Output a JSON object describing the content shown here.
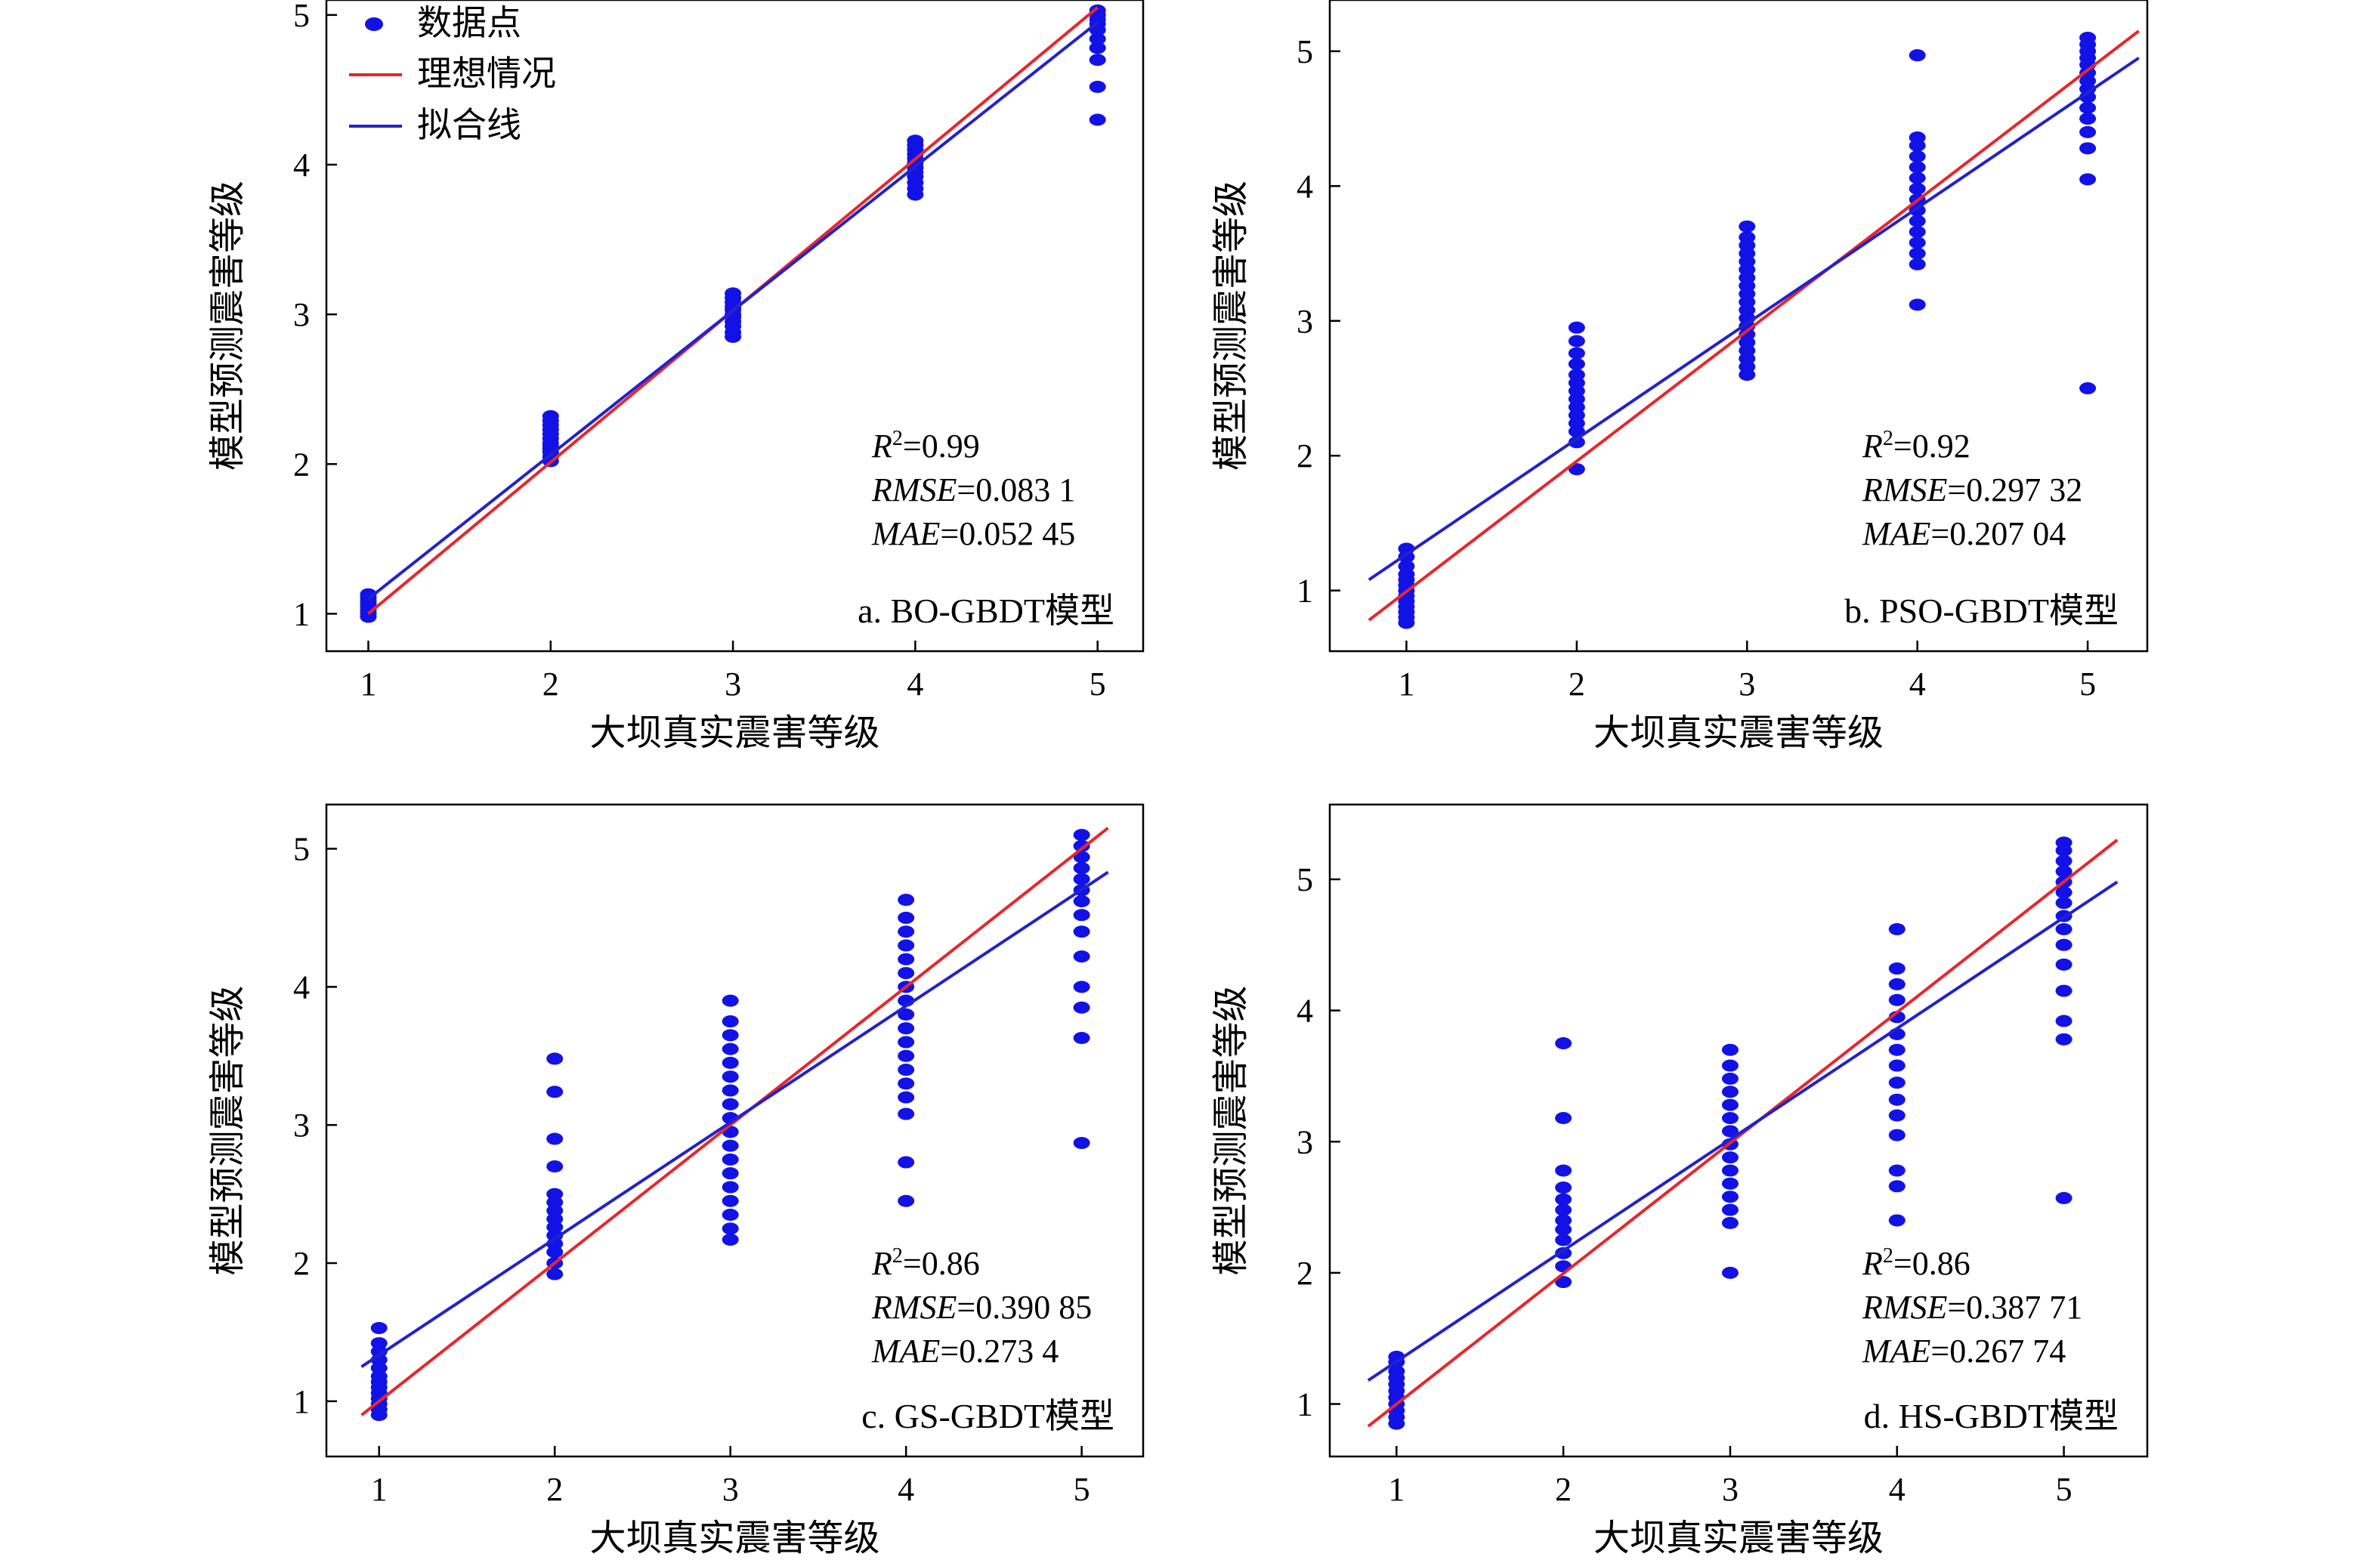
{
  "colors": {
    "points": "#1212e6",
    "ideal": "#e8262c",
    "fit": "#2222cc"
  },
  "legend": {
    "points_label": "数据点",
    "ideal_label": "理想情况",
    "fit_label": "拟合线"
  },
  "chart_data": [
    {
      "type": "scatter",
      "panel_label": "a. BO-GBDT模型",
      "xlabel": "大坝真实震害等级",
      "ylabel": "模型预测震害等级",
      "x_ticks": [
        1,
        2,
        3,
        4,
        5
      ],
      "y_ticks": [
        1,
        2,
        3,
        4,
        5
      ],
      "xlim": [
        0.77,
        5.25
      ],
      "ylim": [
        0.75,
        5.1
      ],
      "stats": {
        "r2_label": "R",
        "r2_value": "=0.99",
        "rmse_label": "RMSE",
        "rmse_value": "=0.083 1",
        "mae_label": "MAE",
        "mae_value": "=0.052 45"
      },
      "ideal_line": [
        [
          1.0,
          1.0
        ],
        [
          5.0,
          5.05
        ]
      ],
      "fit_line": [
        [
          1.0,
          1.1
        ],
        [
          5.0,
          4.95
        ]
      ],
      "points": [
        {
          "x": 1,
          "y": [
            0.98,
            1.0,
            1.02,
            1.04,
            1.05,
            1.07,
            1.09,
            1.11,
            1.13
          ]
        },
        {
          "x": 2,
          "y": [
            2.02,
            2.05,
            2.08,
            2.1,
            2.12,
            2.14,
            2.17,
            2.2,
            2.23,
            2.26,
            2.29,
            2.32
          ]
        },
        {
          "x": 3,
          "y": [
            2.85,
            2.88,
            2.92,
            2.95,
            2.98,
            3.0,
            3.03,
            3.05,
            3.08,
            3.11,
            3.14
          ]
        },
        {
          "x": 4,
          "y": [
            3.8,
            3.84,
            3.88,
            3.92,
            3.95,
            3.98,
            4.01,
            4.04,
            4.07,
            4.1,
            4.13,
            4.16
          ]
        },
        {
          "x": 5,
          "y": [
            4.3,
            4.52,
            4.7,
            4.78,
            4.84,
            4.9,
            4.94,
            4.97,
            5.0,
            5.03
          ]
        }
      ]
    },
    {
      "type": "scatter",
      "panel_label": "b. PSO-GBDT模型",
      "xlabel": "大坝真实震害等级",
      "ylabel": "模型预测震害等级",
      "x_ticks": [
        1,
        2,
        3,
        4,
        5
      ],
      "y_ticks": [
        1,
        2,
        3,
        4,
        5
      ],
      "xlim": [
        0.55,
        5.35
      ],
      "ylim": [
        0.55,
        5.38
      ],
      "stats": {
        "r2_label": "R",
        "r2_value": "=0.92",
        "rmse_label": "RMSE",
        "rmse_value": "=0.297 32",
        "mae_label": "MAE",
        "mae_value": "=0.207 04"
      },
      "ideal_line": [
        [
          0.78,
          0.78
        ],
        [
          5.3,
          5.15
        ]
      ],
      "fit_line": [
        [
          0.78,
          1.08
        ],
        [
          5.3,
          4.95
        ]
      ],
      "points": [
        {
          "x": 1,
          "y": [
            0.76,
            0.8,
            0.84,
            0.88,
            0.92,
            0.96,
            1.0,
            1.04,
            1.08,
            1.12,
            1.18,
            1.25,
            1.31
          ]
        },
        {
          "x": 2,
          "y": [
            1.9,
            2.1,
            2.18,
            2.24,
            2.3,
            2.36,
            2.42,
            2.48,
            2.54,
            2.6,
            2.68,
            2.76,
            2.85,
            2.95
          ]
        },
        {
          "x": 3,
          "y": [
            2.6,
            2.66,
            2.72,
            2.78,
            2.84,
            2.9,
            2.96,
            3.02,
            3.08,
            3.14,
            3.2,
            3.26,
            3.32,
            3.38,
            3.44,
            3.5,
            3.56,
            3.62,
            3.7
          ]
        },
        {
          "x": 4,
          "y": [
            3.12,
            3.42,
            3.5,
            3.58,
            3.66,
            3.74,
            3.82,
            3.9,
            3.98,
            4.06,
            4.14,
            4.22,
            4.3,
            4.36,
            4.97
          ]
        },
        {
          "x": 5,
          "y": [
            2.5,
            4.05,
            4.28,
            4.4,
            4.5,
            4.58,
            4.66,
            4.72,
            4.78,
            4.84,
            4.9,
            4.95,
            5.0,
            5.05,
            5.1
          ]
        }
      ]
    },
    {
      "type": "scatter",
      "panel_label": "c. GS-GBDT模型",
      "xlabel": "大坝真实震害等级",
      "ylabel": "模型预测震害等级",
      "x_ticks": [
        1,
        2,
        3,
        4,
        5
      ],
      "y_ticks": [
        1,
        2,
        3,
        4,
        5
      ],
      "xlim": [
        0.7,
        5.35
      ],
      "ylim": [
        0.6,
        5.32
      ],
      "stats": {
        "r2_label": "R",
        "r2_value": "=0.86",
        "rmse_label": "RMSE",
        "rmse_value": "=0.390 85",
        "mae_label": "MAE",
        "mae_value": "=0.273 4"
      },
      "ideal_line": [
        [
          0.9,
          0.9
        ],
        [
          5.15,
          5.15
        ]
      ],
      "fit_line": [
        [
          0.9,
          1.25
        ],
        [
          5.15,
          4.83
        ]
      ],
      "points": [
        {
          "x": 1,
          "y": [
            0.9,
            0.94,
            0.98,
            1.02,
            1.06,
            1.1,
            1.14,
            1.18,
            1.24,
            1.3,
            1.36,
            1.42,
            1.53
          ]
        },
        {
          "x": 2,
          "y": [
            1.92,
            2.0,
            2.08,
            2.14,
            2.2,
            2.26,
            2.32,
            2.38,
            2.44,
            2.5,
            2.7,
            2.9,
            3.24,
            3.48
          ]
        },
        {
          "x": 3,
          "y": [
            2.17,
            2.25,
            2.35,
            2.45,
            2.55,
            2.65,
            2.75,
            2.85,
            2.95,
            3.05,
            3.15,
            3.25,
            3.35,
            3.45,
            3.55,
            3.65,
            3.75,
            3.9
          ]
        },
        {
          "x": 4,
          "y": [
            2.45,
            2.73,
            3.08,
            3.2,
            3.3,
            3.4,
            3.5,
            3.6,
            3.7,
            3.8,
            3.9,
            4.0,
            4.1,
            4.2,
            4.3,
            4.4,
            4.5,
            4.63
          ]
        },
        {
          "x": 5,
          "y": [
            2.87,
            3.63,
            3.85,
            4.0,
            4.22,
            4.4,
            4.52,
            4.62,
            4.7,
            4.78,
            4.86,
            4.94,
            5.02,
            5.1
          ]
        }
      ]
    },
    {
      "type": "scatter",
      "panel_label": "d. HS-GBDT模型",
      "xlabel": "大坝真实震害等级",
      "ylabel": "模型预测震害等级",
      "x_ticks": [
        1,
        2,
        3,
        4,
        5
      ],
      "y_ticks": [
        1,
        2,
        3,
        4,
        5
      ],
      "xlim": [
        0.6,
        5.5
      ],
      "ylim": [
        0.6,
        5.57
      ],
      "stats": {
        "r2_label": "R",
        "r2_value": "=0.86",
        "rmse_label": "RMSE",
        "rmse_value": "=0.387 71",
        "mae_label": "MAE",
        "mae_value": "=0.267 74"
      },
      "ideal_line": [
        [
          0.83,
          0.83
        ],
        [
          5.32,
          5.3
        ]
      ],
      "fit_line": [
        [
          0.83,
          1.18
        ],
        [
          5.32,
          4.98
        ]
      ],
      "points": [
        {
          "x": 1,
          "y": [
            0.85,
            0.9,
            0.95,
            1.0,
            1.05,
            1.1,
            1.15,
            1.2,
            1.25,
            1.32,
            1.36
          ]
        },
        {
          "x": 2,
          "y": [
            1.93,
            2.05,
            2.15,
            2.25,
            2.33,
            2.4,
            2.48,
            2.56,
            2.65,
            2.78,
            3.18,
            3.75
          ]
        },
        {
          "x": 3,
          "y": [
            2.0,
            2.38,
            2.48,
            2.58,
            2.68,
            2.78,
            2.88,
            2.98,
            3.08,
            3.18,
            3.28,
            3.38,
            3.48,
            3.58,
            3.7
          ]
        },
        {
          "x": 4,
          "y": [
            2.4,
            2.66,
            2.78,
            3.05,
            3.2,
            3.32,
            3.45,
            3.58,
            3.7,
            3.82,
            3.95,
            4.08,
            4.2,
            4.32,
            4.62
          ]
        },
        {
          "x": 5,
          "y": [
            2.57,
            3.78,
            3.92,
            4.15,
            4.35,
            4.5,
            4.62,
            4.72,
            4.82,
            4.9,
            4.98,
            5.06,
            5.14,
            5.22,
            5.28
          ]
        }
      ]
    }
  ]
}
